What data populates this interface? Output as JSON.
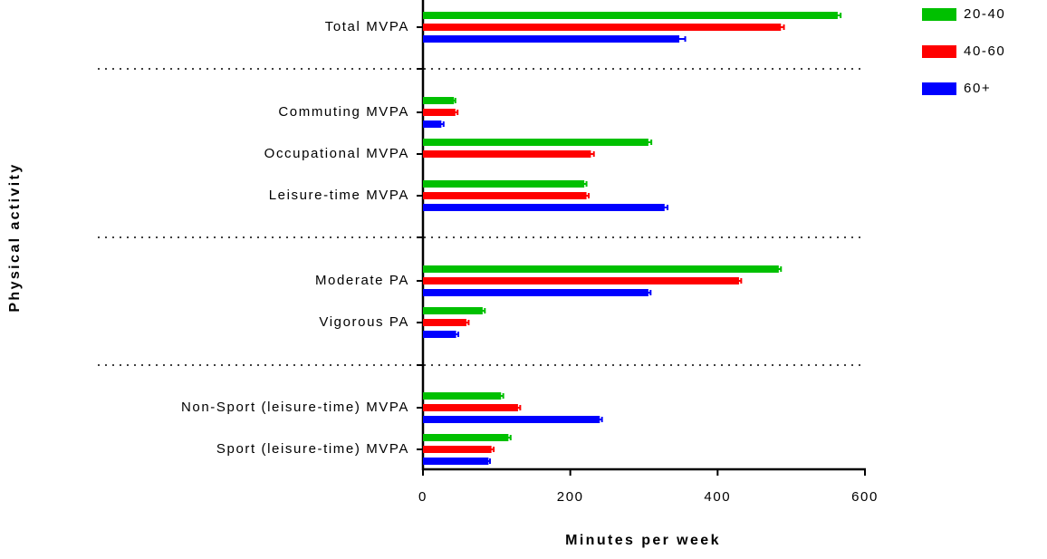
{
  "chart_data": {
    "type": "bar",
    "orientation": "horizontal",
    "x_label": "Minutes per week",
    "y_label": "Physical activity",
    "categories": [
      "Total MVPA",
      "Commuting MVPA",
      "Occupational MVPA",
      "Leisure-time MVPA",
      "Moderate PA",
      "Vigorous PA",
      "Non-Sport (leisure-time) MVPA",
      "Sport (leisure-time) MVPA"
    ],
    "series": [
      {
        "name": "20-40",
        "color": "#00c000",
        "values": [
          563,
          42,
          306,
          219,
          483,
          81,
          106,
          116
        ],
        "errors": [
          4,
          2,
          4,
          3,
          3,
          3,
          3,
          3
        ]
      },
      {
        "name": "40-60",
        "color": "#ff0000",
        "values": [
          486,
          44,
          228,
          222,
          429,
          59,
          129,
          93
        ],
        "errors": [
          4,
          3,
          4,
          3,
          3,
          3,
          3,
          3
        ]
      },
      {
        "name": "60+",
        "color": "#0000ff",
        "values": [
          348,
          25,
          null,
          328,
          306,
          45,
          240,
          89
        ],
        "errors": [
          8,
          3,
          null,
          4,
          3,
          3,
          3,
          2
        ]
      }
    ],
    "xlim": [
      0,
      600
    ],
    "xticks": [
      0,
      200,
      400,
      600
    ]
  }
}
